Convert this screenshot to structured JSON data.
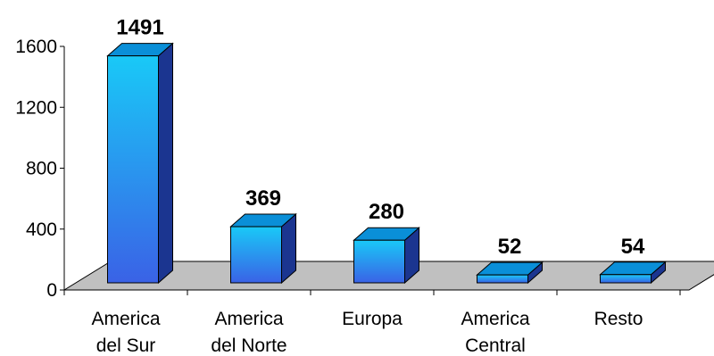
{
  "chart_data": {
    "type": "bar",
    "style": "3d-column",
    "title": "",
    "xlabel": "",
    "ylabel": "",
    "categories": [
      [
        "America",
        "del Sur"
      ],
      [
        "America",
        "del Norte"
      ],
      [
        "Europa"
      ],
      [
        "America",
        "Central"
      ],
      [
        "Resto"
      ]
    ],
    "values": [
      1491,
      369,
      280,
      52,
      54
    ],
    "data_labels": [
      "1491",
      "369",
      "280",
      "52",
      "54"
    ],
    "yticks": [
      "0",
      "400",
      "800",
      "1200",
      "1600"
    ],
    "ylim": [
      0,
      1600
    ],
    "grid": false,
    "legend": "none",
    "colors": {
      "bar_top": "#0a8fd8",
      "bar_front_light": "#19c9f7",
      "bar_front_dark": "#3a62e6",
      "bar_side": "#1b3590",
      "floor": "#c0c0c0",
      "axis": "#000000"
    }
  }
}
